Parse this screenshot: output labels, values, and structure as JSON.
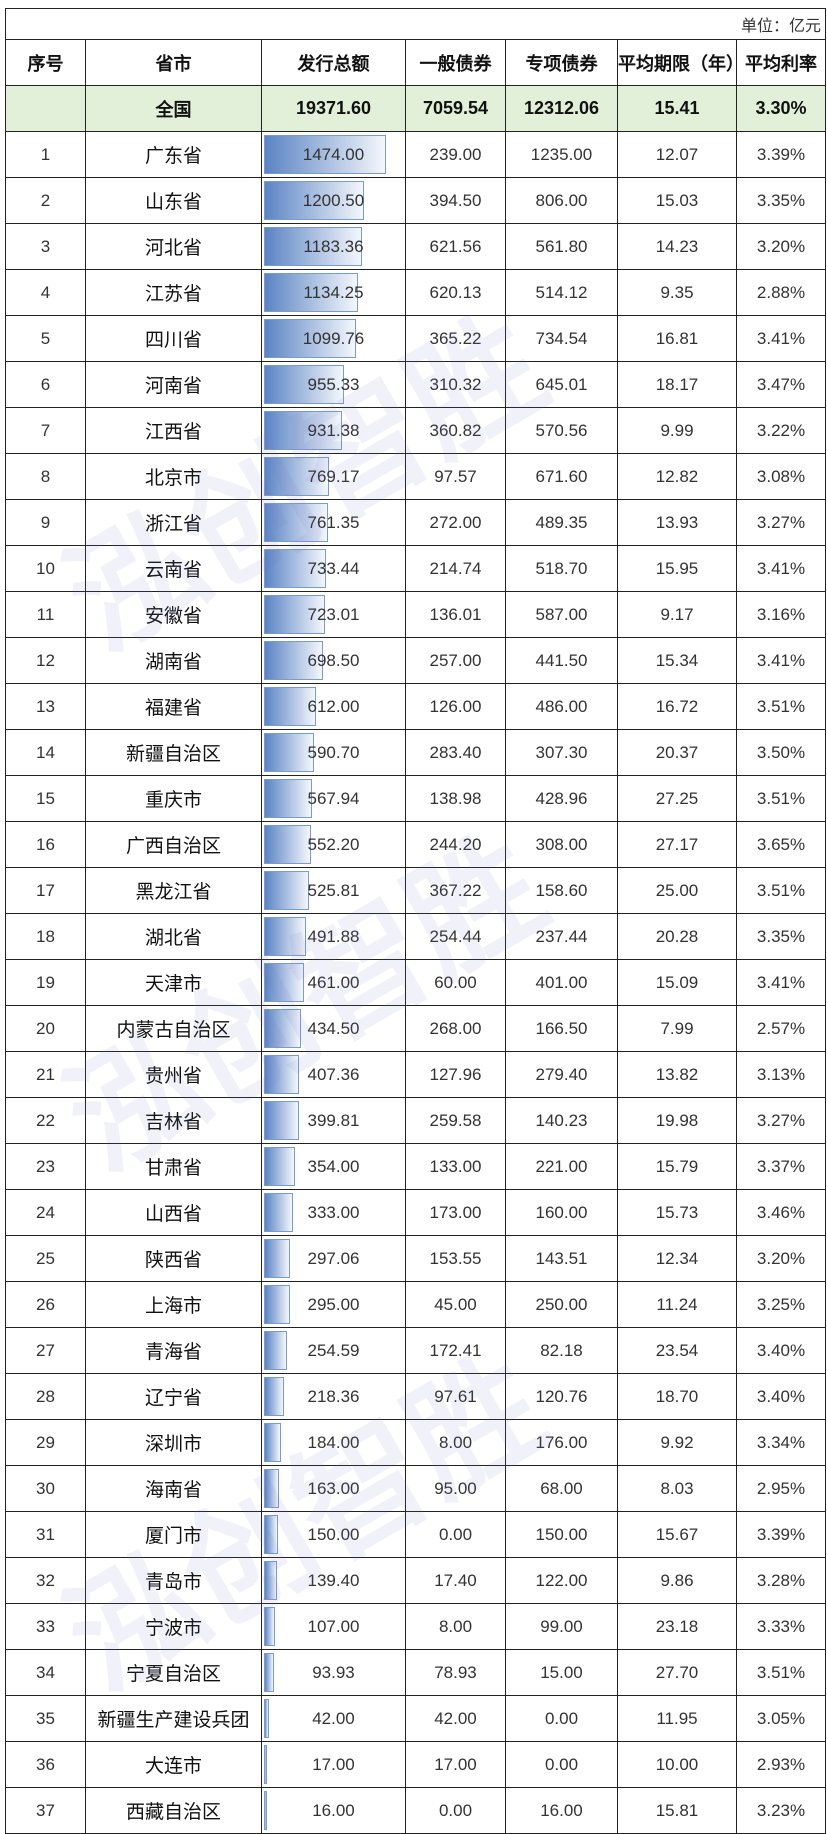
{
  "unit": "单位：亿元",
  "headers": [
    "序号",
    "省市",
    "发行总额",
    "一般债券",
    "专项债券",
    "平均期限（年）",
    "平均利率"
  ],
  "total": {
    "name": "全国",
    "total": "19371.60",
    "general": "7059.54",
    "special": "12312.06",
    "term": "15.41",
    "rate": "3.30%"
  },
  "bar_color": "#5b84c4",
  "total_row_color": "#e2f0d9",
  "watermark": "泓创智胜",
  "rows": [
    {
      "no": "1",
      "name": "广东省",
      "total": "1474.00",
      "general": "239.00",
      "special": "1235.00",
      "term": "12.07",
      "rate": "3.39%"
    },
    {
      "no": "2",
      "name": "山东省",
      "total": "1200.50",
      "general": "394.50",
      "special": "806.00",
      "term": "15.03",
      "rate": "3.35%"
    },
    {
      "no": "3",
      "name": "河北省",
      "total": "1183.36",
      "general": "621.56",
      "special": "561.80",
      "term": "14.23",
      "rate": "3.20%"
    },
    {
      "no": "4",
      "name": "江苏省",
      "total": "1134.25",
      "general": "620.13",
      "special": "514.12",
      "term": "9.35",
      "rate": "2.88%"
    },
    {
      "no": "5",
      "name": "四川省",
      "total": "1099.76",
      "general": "365.22",
      "special": "734.54",
      "term": "16.81",
      "rate": "3.41%"
    },
    {
      "no": "6",
      "name": "河南省",
      "total": "955.33",
      "general": "310.32",
      "special": "645.01",
      "term": "18.17",
      "rate": "3.47%"
    },
    {
      "no": "7",
      "name": "江西省",
      "total": "931.38",
      "general": "360.82",
      "special": "570.56",
      "term": "9.99",
      "rate": "3.22%"
    },
    {
      "no": "8",
      "name": "北京市",
      "total": "769.17",
      "general": "97.57",
      "special": "671.60",
      "term": "12.82",
      "rate": "3.08%"
    },
    {
      "no": "9",
      "name": "浙江省",
      "total": "761.35",
      "general": "272.00",
      "special": "489.35",
      "term": "13.93",
      "rate": "3.27%"
    },
    {
      "no": "10",
      "name": "云南省",
      "total": "733.44",
      "general": "214.74",
      "special": "518.70",
      "term": "15.95",
      "rate": "3.41%"
    },
    {
      "no": "11",
      "name": "安徽省",
      "total": "723.01",
      "general": "136.01",
      "special": "587.00",
      "term": "9.17",
      "rate": "3.16%"
    },
    {
      "no": "12",
      "name": "湖南省",
      "total": "698.50",
      "general": "257.00",
      "special": "441.50",
      "term": "15.34",
      "rate": "3.41%"
    },
    {
      "no": "13",
      "name": "福建省",
      "total": "612.00",
      "general": "126.00",
      "special": "486.00",
      "term": "16.72",
      "rate": "3.51%"
    },
    {
      "no": "14",
      "name": "新疆自治区",
      "total": "590.70",
      "general": "283.40",
      "special": "307.30",
      "term": "20.37",
      "rate": "3.50%"
    },
    {
      "no": "15",
      "name": "重庆市",
      "total": "567.94",
      "general": "138.98",
      "special": "428.96",
      "term": "27.25",
      "rate": "3.51%"
    },
    {
      "no": "16",
      "name": "广西自治区",
      "total": "552.20",
      "general": "244.20",
      "special": "308.00",
      "term": "27.17",
      "rate": "3.65%"
    },
    {
      "no": "17",
      "name": "黑龙江省",
      "total": "525.81",
      "general": "367.22",
      "special": "158.60",
      "term": "25.00",
      "rate": "3.51%"
    },
    {
      "no": "18",
      "name": "湖北省",
      "total": "491.88",
      "general": "254.44",
      "special": "237.44",
      "term": "20.28",
      "rate": "3.35%"
    },
    {
      "no": "19",
      "name": "天津市",
      "total": "461.00",
      "general": "60.00",
      "special": "401.00",
      "term": "15.09",
      "rate": "3.41%"
    },
    {
      "no": "20",
      "name": "内蒙古自治区",
      "total": "434.50",
      "general": "268.00",
      "special": "166.50",
      "term": "7.99",
      "rate": "2.57%"
    },
    {
      "no": "21",
      "name": "贵州省",
      "total": "407.36",
      "general": "127.96",
      "special": "279.40",
      "term": "13.82",
      "rate": "3.13%"
    },
    {
      "no": "22",
      "name": "吉林省",
      "total": "399.81",
      "general": "259.58",
      "special": "140.23",
      "term": "19.98",
      "rate": "3.27%"
    },
    {
      "no": "23",
      "name": "甘肃省",
      "total": "354.00",
      "general": "133.00",
      "special": "221.00",
      "term": "15.79",
      "rate": "3.37%"
    },
    {
      "no": "24",
      "name": "山西省",
      "total": "333.00",
      "general": "173.00",
      "special": "160.00",
      "term": "15.73",
      "rate": "3.46%"
    },
    {
      "no": "25",
      "name": "陕西省",
      "total": "297.06",
      "general": "153.55",
      "special": "143.51",
      "term": "12.34",
      "rate": "3.20%"
    },
    {
      "no": "26",
      "name": "上海市",
      "total": "295.00",
      "general": "45.00",
      "special": "250.00",
      "term": "11.24",
      "rate": "3.25%"
    },
    {
      "no": "27",
      "name": "青海省",
      "total": "254.59",
      "general": "172.41",
      "special": "82.18",
      "term": "23.54",
      "rate": "3.40%"
    },
    {
      "no": "28",
      "name": "辽宁省",
      "total": "218.36",
      "general": "97.61",
      "special": "120.76",
      "term": "18.70",
      "rate": "3.40%"
    },
    {
      "no": "29",
      "name": "深圳市",
      "total": "184.00",
      "general": "8.00",
      "special": "176.00",
      "term": "9.92",
      "rate": "3.34%"
    },
    {
      "no": "30",
      "name": "海南省",
      "total": "163.00",
      "general": "95.00",
      "special": "68.00",
      "term": "8.03",
      "rate": "2.95%"
    },
    {
      "no": "31",
      "name": "厦门市",
      "total": "150.00",
      "general": "0.00",
      "special": "150.00",
      "term": "15.67",
      "rate": "3.39%"
    },
    {
      "no": "32",
      "name": "青岛市",
      "total": "139.40",
      "general": "17.40",
      "special": "122.00",
      "term": "9.86",
      "rate": "3.28%"
    },
    {
      "no": "33",
      "name": "宁波市",
      "total": "107.00",
      "general": "8.00",
      "special": "99.00",
      "term": "23.18",
      "rate": "3.33%"
    },
    {
      "no": "34",
      "name": "宁夏自治区",
      "total": "93.93",
      "general": "78.93",
      "special": "15.00",
      "term": "27.70",
      "rate": "3.51%"
    },
    {
      "no": "35",
      "name": "新疆生产建设兵团",
      "total": "42.00",
      "general": "42.00",
      "special": "0.00",
      "term": "11.95",
      "rate": "3.05%"
    },
    {
      "no": "36",
      "name": "大连市",
      "total": "17.00",
      "general": "17.00",
      "special": "0.00",
      "term": "10.00",
      "rate": "2.93%"
    },
    {
      "no": "37",
      "name": "西藏自治区",
      "total": "16.00",
      "general": "0.00",
      "special": "16.00",
      "term": "15.81",
      "rate": "3.23%"
    }
  ]
}
